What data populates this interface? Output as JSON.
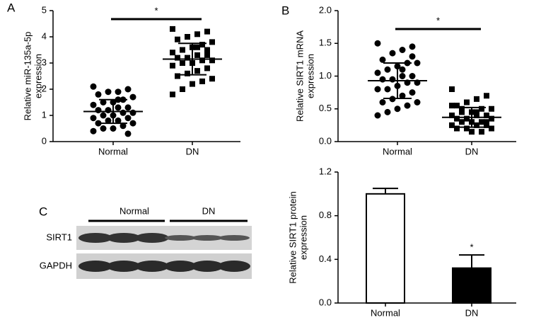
{
  "chart_data": [
    {
      "type": "dotplot",
      "panel": "A",
      "ylabel": [
        "Relative miR-135a-5p",
        "expression"
      ],
      "categories": [
        "Normal",
        "DN"
      ],
      "ylim": [
        0,
        5
      ],
      "yticks": [
        0,
        1,
        2,
        3,
        4,
        5
      ],
      "annotation": "*",
      "groups": [
        {
          "marker": "circle",
          "mean": 1.15,
          "sd": 0.45,
          "values": [
            2.1,
            2.0,
            1.9,
            1.9,
            1.8,
            1.7,
            1.6,
            1.5,
            1.5,
            1.4,
            1.3,
            1.3,
            1.2,
            1.2,
            1.1,
            1.1,
            1.0,
            1.0,
            0.9,
            0.9,
            0.8,
            0.8,
            0.7,
            0.7,
            0.6,
            0.5,
            0.5,
            0.4,
            0.3,
            1.6
          ]
        },
        {
          "marker": "square",
          "mean": 3.15,
          "sd": 0.6,
          "values": [
            4.3,
            4.2,
            4.1,
            4.0,
            3.9,
            3.8,
            3.7,
            3.6,
            3.5,
            3.4,
            3.3,
            3.3,
            3.2,
            3.2,
            3.1,
            3.1,
            3.0,
            3.0,
            2.9,
            2.8,
            2.7,
            2.6,
            2.5,
            2.4,
            2.3,
            2.2,
            2.0,
            1.8,
            3.5,
            3.6
          ]
        }
      ]
    },
    {
      "type": "dotplot",
      "panel": "B",
      "ylabel": [
        "Relative SIRT1 mRNA",
        "expression"
      ],
      "categories": [
        "Normal",
        "DN"
      ],
      "ylim": [
        0,
        2
      ],
      "yticks": [
        {
          "value": 0,
          "label": "0.0"
        },
        0.5,
        {
          "value": 1,
          "label": "1.0"
        },
        1.5,
        {
          "value": 2,
          "label": "2.0"
        }
      ],
      "annotation": "*",
      "groups": [
        {
          "marker": "circle",
          "mean": 0.93,
          "sd": 0.27,
          "values": [
            1.5,
            1.45,
            1.4,
            1.35,
            1.25,
            1.2,
            1.2,
            1.15,
            1.1,
            1.05,
            1.0,
            1.0,
            0.95,
            0.95,
            0.9,
            0.9,
            0.85,
            0.8,
            0.8,
            0.75,
            0.7,
            0.65,
            0.6,
            0.6,
            0.55,
            0.5,
            0.45,
            0.4,
            1.3,
            1.1
          ]
        },
        {
          "marker": "square",
          "mean": 0.37,
          "sd": 0.15,
          "values": [
            0.8,
            0.7,
            0.65,
            0.6,
            0.55,
            0.5,
            0.5,
            0.45,
            0.45,
            0.4,
            0.4,
            0.4,
            0.35,
            0.35,
            0.35,
            0.3,
            0.3,
            0.3,
            0.25,
            0.25,
            0.25,
            0.2,
            0.2,
            0.2,
            0.15,
            0.15,
            0.5,
            0.55,
            0.3,
            0.45
          ]
        }
      ]
    },
    {
      "type": "bar",
      "ylabel": [
        "Relative SIRT1 protein",
        "expression"
      ],
      "categories": [
        "Normal",
        "DN"
      ],
      "ylim": [
        0,
        1.2
      ],
      "yticks": [
        {
          "value": 0,
          "label": "0.0"
        },
        0.4,
        0.8,
        1.2
      ],
      "annotation": "*",
      "values": [
        1.0,
        0.32
      ],
      "errors": [
        0.05,
        0.12
      ],
      "colors": [
        "#ffffff",
        "#000000"
      ]
    }
  ],
  "blot": {
    "panel": "C",
    "groups": [
      "Normal",
      "DN"
    ],
    "rows": [
      "SIRT1",
      "GAPDH"
    ]
  }
}
